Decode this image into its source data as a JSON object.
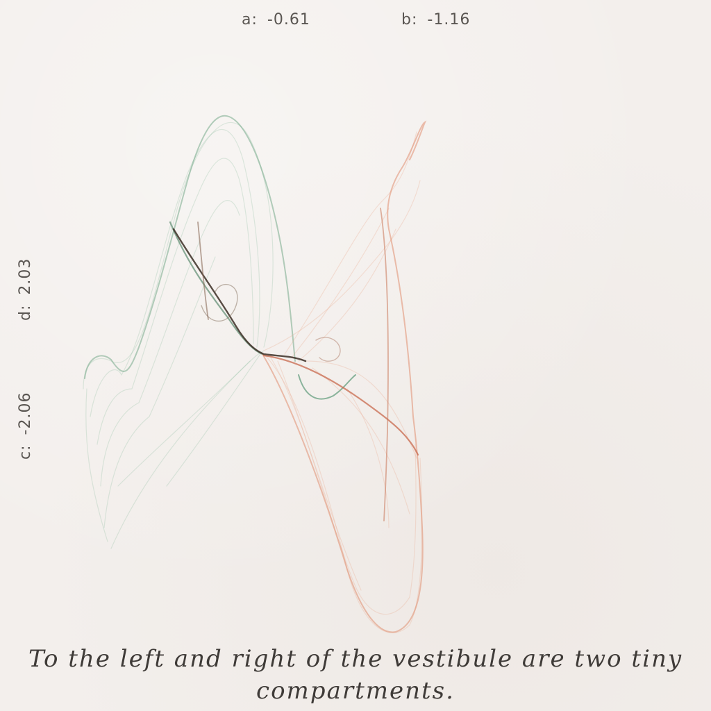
{
  "params": {
    "a": {
      "label": "a:",
      "value": "-0.61"
    },
    "b": {
      "label": "b:",
      "value": "-1.16"
    },
    "c": {
      "label": "c:",
      "value": "-2.06"
    },
    "d": {
      "label": "d:",
      "value": "2.03"
    }
  },
  "colors": {
    "background": "#f3efec",
    "green_strand": "#7fae92",
    "orange_strand": "#e2967a",
    "core_strand": "#3b2e24"
  },
  "caption": "To the left and right of the vestibule are two tiny compartments."
}
